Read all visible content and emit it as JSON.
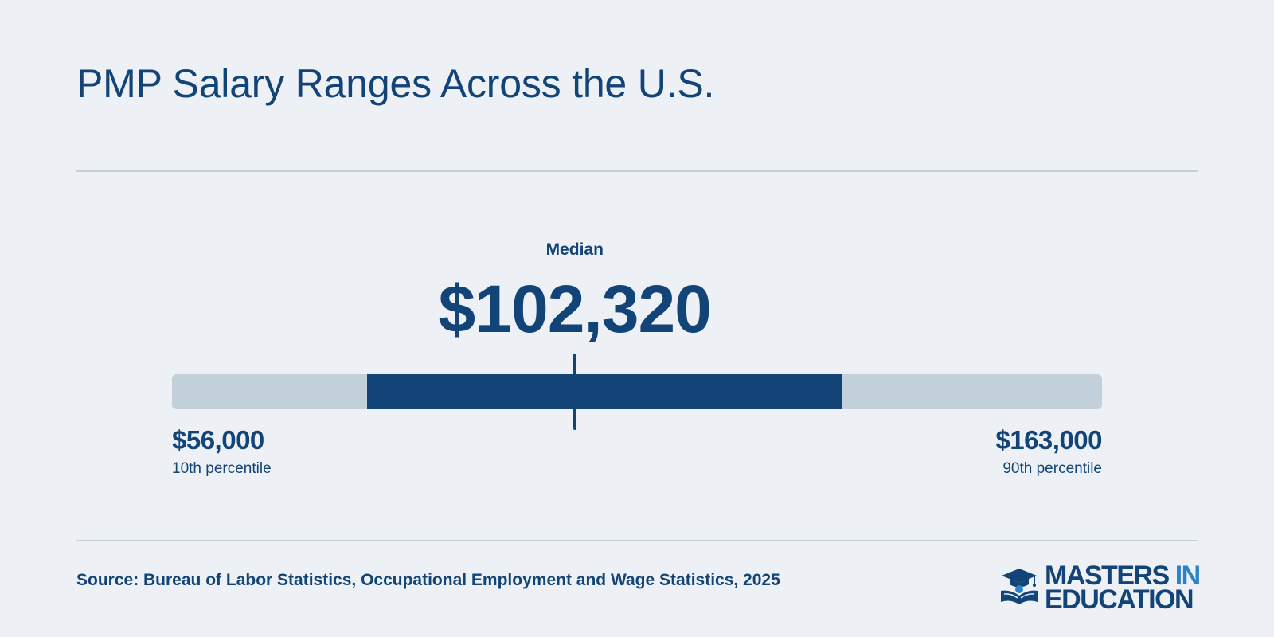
{
  "title": "PMP Salary Ranges Across the U.S.",
  "median": {
    "label": "Median",
    "value_text": "$102,320"
  },
  "low": {
    "value_text": "$56,000",
    "label": "10th percentile"
  },
  "high": {
    "value_text": "$163,000",
    "label": "90th percentile"
  },
  "source": "Source: Bureau of Labor Statistics, Occupational Employment and Wage Statistics, 2025",
  "logo": {
    "line1_main": "MASTERS",
    "line1_accent": "IN",
    "line2": "EDUCATION",
    "icon": "graduation-cap-book-icon"
  },
  "colors": {
    "background": "#edf0f5",
    "primary": "#134478",
    "track": "#c2d0dc",
    "rule": "#c4cfdb",
    "logo_accent": "#2a82c9"
  },
  "chart_data": {
    "type": "range",
    "title": "PMP Salary Ranges Across the U.S.",
    "percentile_10": 56000,
    "median": 102320,
    "percentile_90": 163000,
    "highlighted_range_fraction": [
      0.21,
      0.72
    ],
    "median_position_fraction": 0.433
  }
}
